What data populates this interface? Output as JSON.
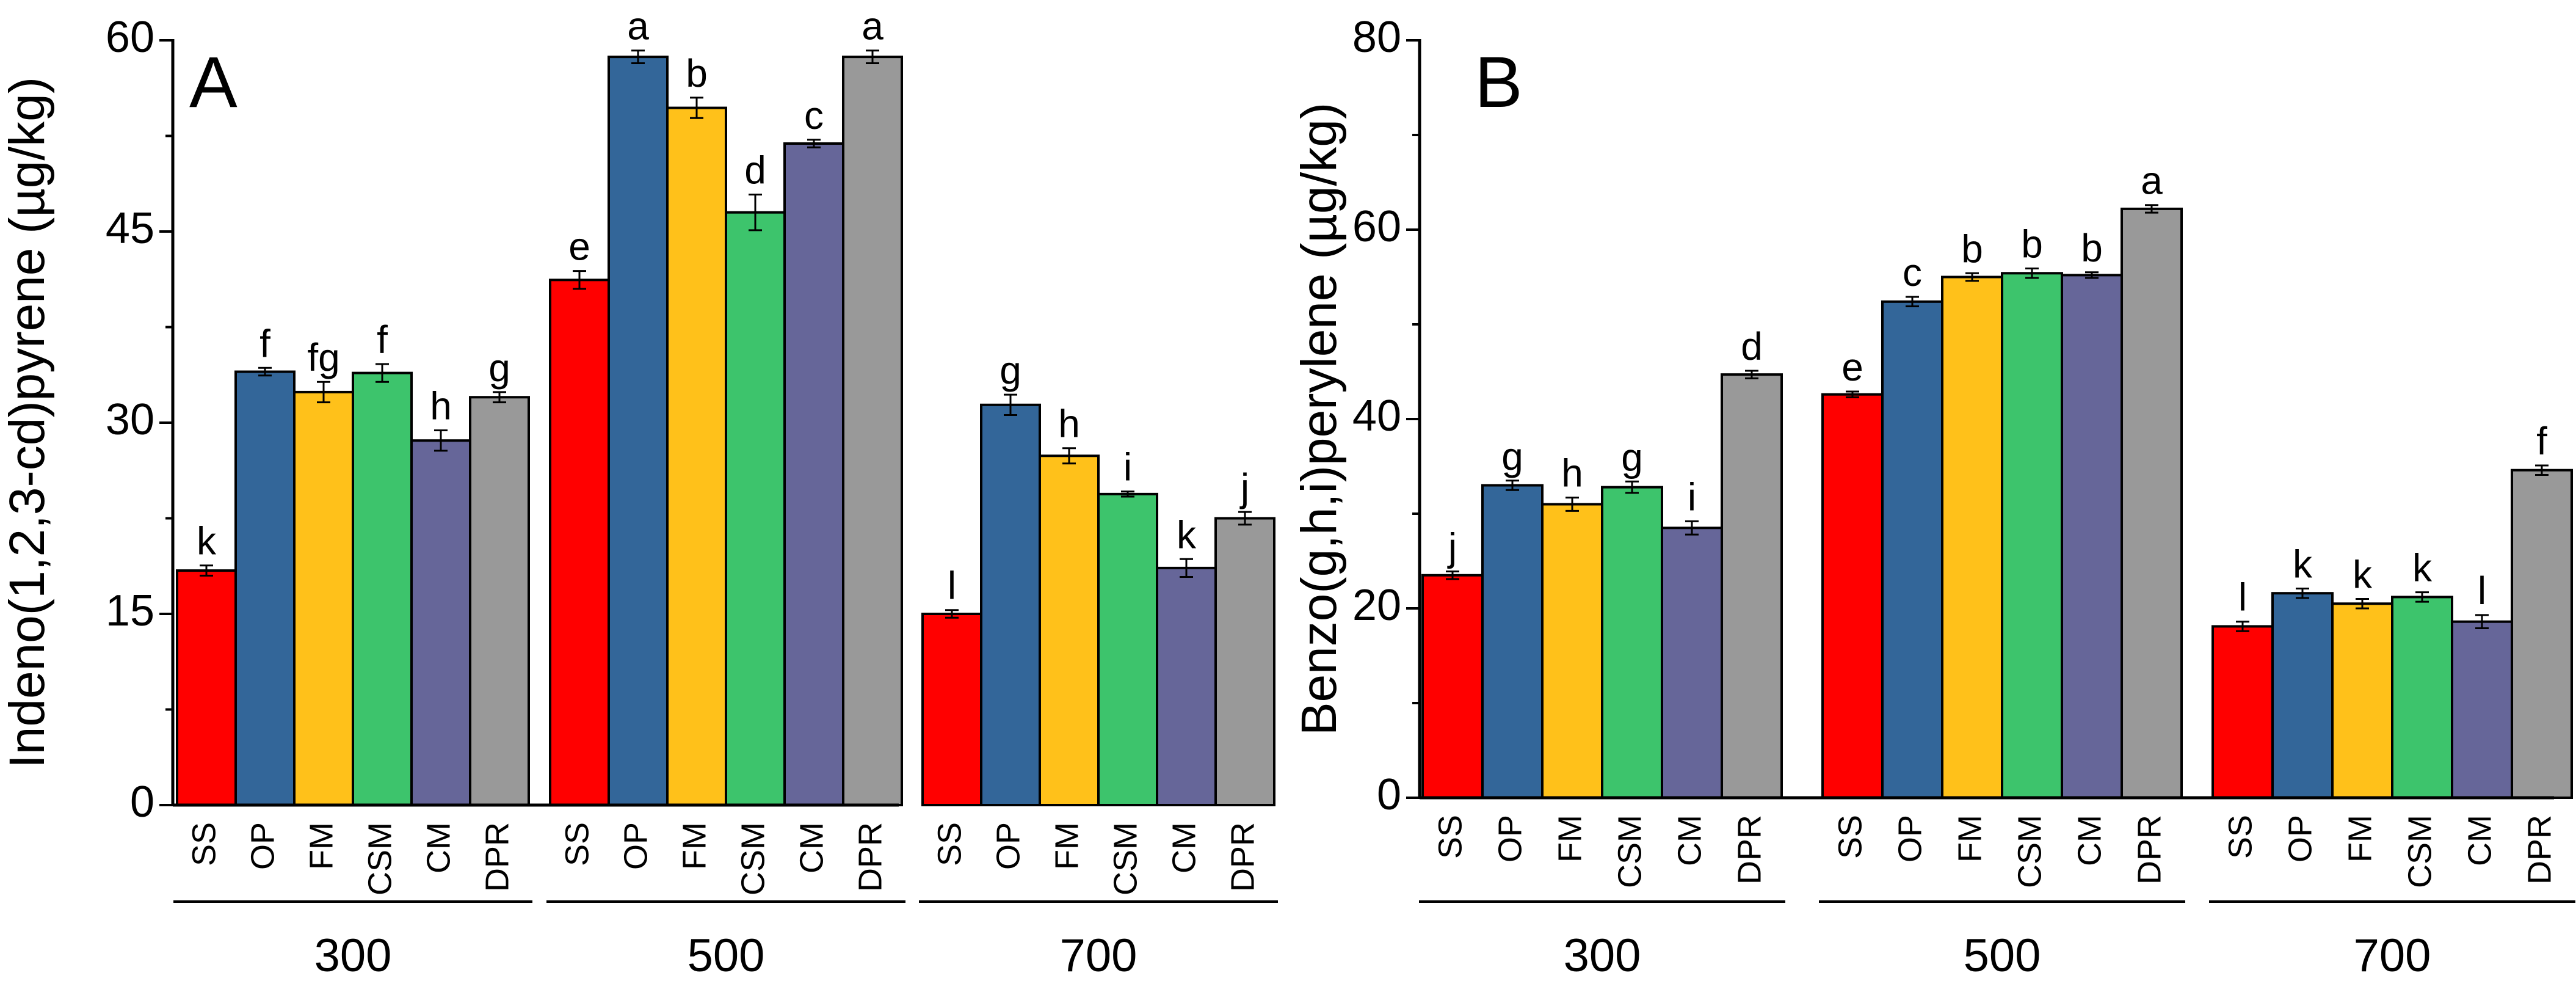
{
  "chart_data": [
    {
      "type": "bar",
      "panel": "A",
      "ylabel": "Indeno(1,2,3-cd)pyrene (µg/kg)",
      "ylim": [
        0,
        60
      ],
      "yticks": [
        0,
        15,
        30,
        45,
        60
      ],
      "groups": [
        {
          "label": "300",
          "categories": [
            "SS",
            "OP",
            "FM",
            "CSM",
            "CM",
            "DPR"
          ],
          "values": [
            18.4,
            34.0,
            32.4,
            33.9,
            28.6,
            32.0
          ],
          "errors": [
            0.4,
            0.3,
            0.8,
            0.7,
            0.8,
            0.4
          ],
          "letters": [
            "k",
            "f",
            "fg",
            "f",
            "h",
            "g"
          ]
        },
        {
          "label": "500",
          "categories": [
            "SS",
            "OP",
            "FM",
            "CSM",
            "CM",
            "DPR"
          ],
          "values": [
            41.2,
            58.7,
            54.7,
            46.5,
            51.9,
            58.7
          ],
          "errors": [
            0.7,
            0.5,
            0.8,
            1.4,
            0.3,
            0.5
          ],
          "letters": [
            "e",
            "a",
            "b",
            "d",
            "c",
            "a"
          ]
        },
        {
          "label": "700",
          "categories": [
            "SS",
            "OP",
            "FM",
            "CSM",
            "CM",
            "DPR"
          ],
          "values": [
            15.0,
            31.4,
            27.4,
            24.4,
            18.6,
            22.5
          ],
          "errors": [
            0.3,
            0.8,
            0.6,
            0.2,
            0.7,
            0.5
          ],
          "letters": [
            "l",
            "g",
            "h",
            "i",
            "k",
            "j"
          ]
        }
      ]
    },
    {
      "type": "bar",
      "panel": "B",
      "ylabel": "Benzo(g,h,i)perylene (µg/kg)",
      "ylim": [
        0,
        80
      ],
      "yticks": [
        0,
        20,
        40,
        60,
        80
      ],
      "groups": [
        {
          "label": "300",
          "categories": [
            "SS",
            "OP",
            "FM",
            "CSM",
            "CM",
            "DPR"
          ],
          "values": [
            23.5,
            33.0,
            31.0,
            32.8,
            28.5,
            44.7
          ],
          "errors": [
            0.4,
            0.5,
            0.7,
            0.6,
            0.7,
            0.4
          ],
          "letters": [
            "j",
            "g",
            "h",
            "g",
            "i",
            "d"
          ]
        },
        {
          "label": "500",
          "categories": [
            "SS",
            "OP",
            "FM",
            "CSM",
            "CM",
            "DPR"
          ],
          "values": [
            42.6,
            52.4,
            55.0,
            55.4,
            55.2,
            62.2
          ],
          "errors": [
            0.3,
            0.5,
            0.4,
            0.5,
            0.3,
            0.4
          ],
          "letters": [
            "e",
            "c",
            "b",
            "b",
            "b",
            "a"
          ]
        },
        {
          "label": "700",
          "categories": [
            "SS",
            "OP",
            "FM",
            "CSM",
            "CM",
            "DPR"
          ],
          "values": [
            18.1,
            21.6,
            20.5,
            21.2,
            18.6,
            34.6
          ],
          "errors": [
            0.5,
            0.5,
            0.5,
            0.5,
            0.7,
            0.5
          ],
          "letters": [
            "l",
            "k",
            "k",
            "k",
            "l",
            "f"
          ]
        }
      ]
    }
  ],
  "colors": {
    "SS": "#ff0000",
    "OP": "#336699",
    "FM": "#ffc11a",
    "CSM": "#3dc46c",
    "CM": "#666699",
    "DPR": "#999999"
  }
}
